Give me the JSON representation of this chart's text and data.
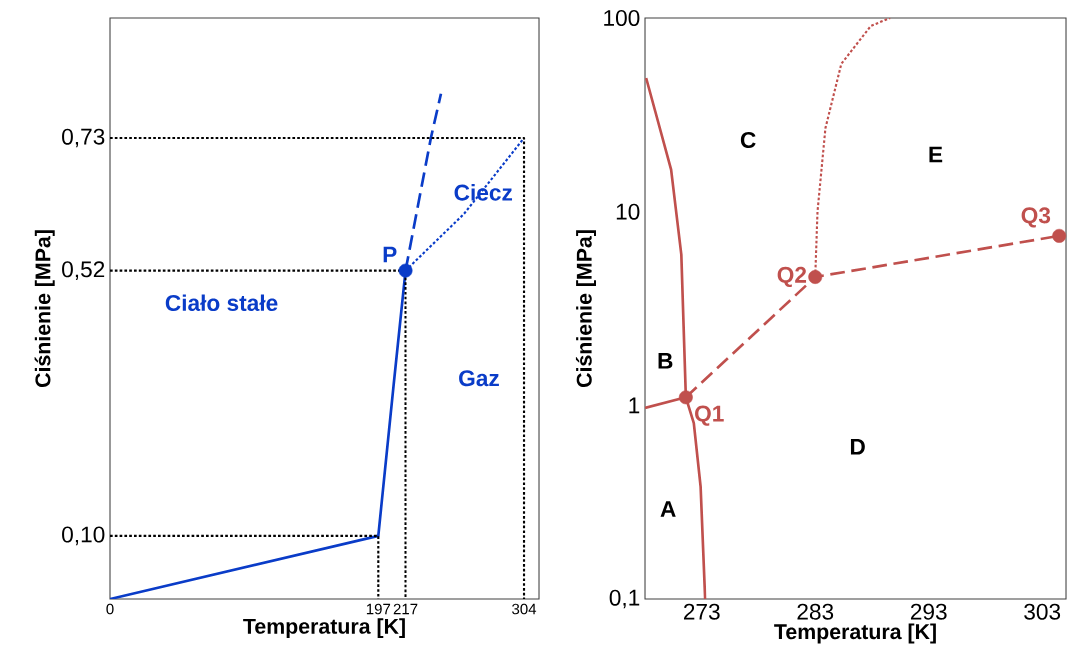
{
  "chart_data": [
    {
      "type": "line",
      "xlabel": "Temperatura [K]",
      "ylabel": "Ciśnienie [MPa]",
      "xlim": [
        0,
        315
      ],
      "ylim": [
        0,
        0.92
      ],
      "xticks": [
        0,
        197,
        217,
        304
      ],
      "yticks": [
        {
          "value": 0.1,
          "label": "0,10"
        },
        {
          "value": 0.52,
          "label": "0,52"
        },
        {
          "value": 0.73,
          "label": "0,73"
        }
      ],
      "series": [
        {
          "color": "#0a3cc8",
          "line_style": "solid",
          "x": [
            0,
            197,
            208.3,
            217
          ],
          "values": [
            0,
            0.1,
            0.34,
            0.52
          ]
        },
        {
          "color": "#0a3cc8",
          "line_style": "dotted",
          "x": [
            217,
            260,
            304
          ],
          "values": [
            0.52,
            0.61,
            0.73
          ]
        },
        {
          "color": "#0a3cc8",
          "line_style": "dashed",
          "x": [
            217,
            235.6,
            243
          ],
          "values": [
            0.52,
            0.73,
            0.8
          ]
        },
        {
          "color": "#000000",
          "line_style": "dotted",
          "x": [
            0,
            197,
            197
          ],
          "values": [
            0.1,
            0.1,
            0
          ]
        },
        {
          "color": "#000000",
          "line_style": "dotted",
          "x": [
            0,
            217,
            217
          ],
          "values": [
            0.52,
            0.52,
            0
          ]
        },
        {
          "color": "#000000",
          "line_style": "dotted",
          "x": [
            0,
            304,
            304
          ],
          "values": [
            0.73,
            0.73,
            0
          ]
        },
        {
          "type": "scatter",
          "marker": "circle",
          "name": "P",
          "color": "#0a3cc8",
          "x": [
            217
          ],
          "values": [
            0.52
          ]
        }
      ],
      "annotations": [
        "Ciało stałe",
        "Ciecz",
        "Gaz"
      ]
    },
    {
      "type": "line",
      "xlabel": "Temperatura [K]",
      "ylabel": "Ciśnienie [MPa]",
      "log": "y",
      "xlim": [
        268,
        305.1
      ],
      "ylim": [
        0.1,
        100
      ],
      "xticks": [
        273,
        283,
        293,
        303
      ],
      "yticks": [
        {
          "value": 0.1,
          "label": "0,1"
        },
        1,
        10,
        100
      ],
      "series": [
        {
          "color": "#c0504d",
          "line_style": "solid",
          "x": [
            268.1,
            268.9,
            270.3,
            271.2,
            271.6,
            272.3,
            272.9,
            273.3
          ],
          "values": [
            49,
            33,
            16.5,
            6,
            1.1,
            0.81,
            0.38,
            0.1
          ]
        },
        {
          "color": "#c0504d",
          "line_style": "solid",
          "x": [
            268,
            271.6
          ],
          "values": [
            0.97,
            1.1
          ]
        },
        {
          "color": "#c0504d",
          "line_style": "dashed",
          "x": [
            271.6,
            283.0,
            304.5
          ],
          "values": [
            1.1,
            4.6,
            7.5
          ]
        },
        {
          "color": "#c0504d",
          "line_style": "dotted",
          "x": [
            283.0,
            283.2,
            283.9,
            285.3,
            287.9,
            289.6
          ],
          "values": [
            4.6,
            10,
            27,
            58,
            91,
            100
          ]
        },
        {
          "type": "scatter",
          "marker": "circle",
          "name": "Q1",
          "color": "#c0504d",
          "x": [
            271.6
          ],
          "values": [
            1.1
          ]
        },
        {
          "type": "scatter",
          "marker": "circle",
          "name": "Q2",
          "color": "#c0504d",
          "x": [
            283.0
          ],
          "values": [
            4.6
          ]
        },
        {
          "type": "scatter",
          "marker": "circle",
          "name": "Q3",
          "color": "#c0504d",
          "x": [
            304.5
          ],
          "values": [
            7.5
          ]
        }
      ],
      "annotations": [
        "A",
        "B",
        "C",
        "D",
        "E"
      ]
    }
  ]
}
